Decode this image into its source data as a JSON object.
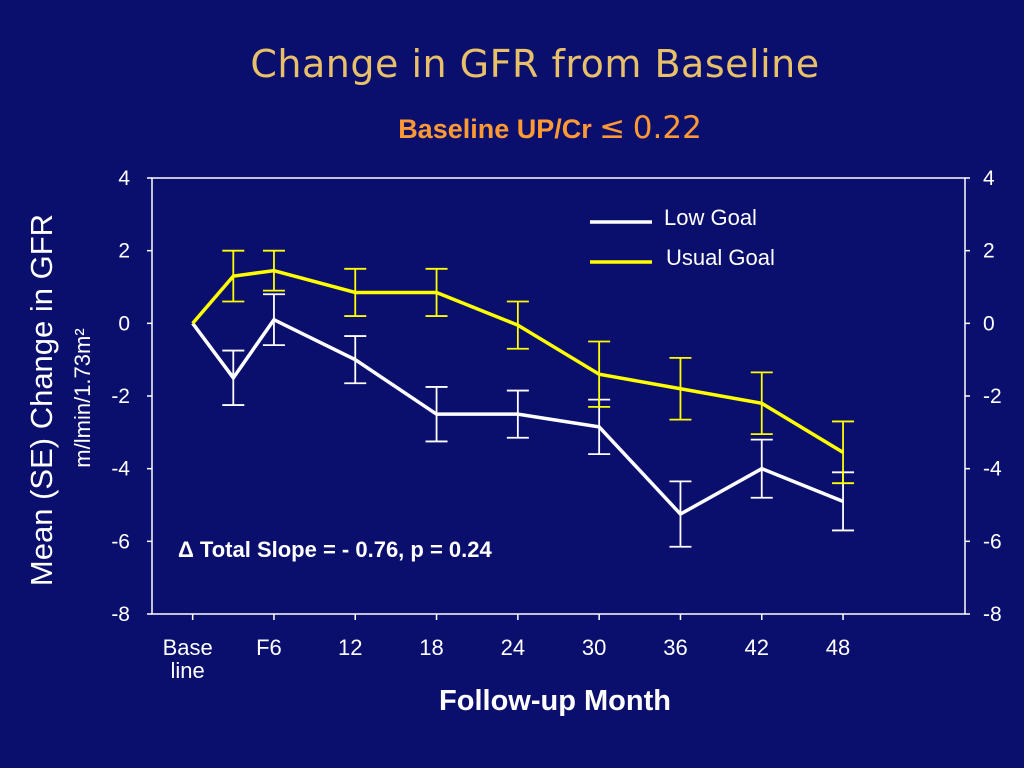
{
  "title": "Change in GFR from Baseline",
  "subtitle": {
    "prefix": "Baseline UP/Cr",
    "symbol": "≤",
    "value": "0.22"
  },
  "chart_data": {
    "type": "line",
    "x_categories": [
      "Base\nline",
      "F6",
      "12",
      "18",
      "24",
      "30",
      "36",
      "42",
      "48"
    ],
    "xlabel": "Follow-up Month",
    "ylabel": "Mean (SE) Change in GFR",
    "ylabel_sub": "m/lmin/1.73m²",
    "ylim": [
      -8,
      4
    ],
    "yticks": [
      4,
      2,
      0,
      -2,
      -4,
      -6,
      -8
    ],
    "grid": false,
    "legend_position": "top-right",
    "series": [
      {
        "name": "Low Goal",
        "color": "#ffffff",
        "x": [
          0,
          3,
          6,
          12,
          18,
          24,
          30,
          36,
          42,
          48
        ],
        "y": [
          0.0,
          -1.5,
          0.1,
          -1.0,
          -2.5,
          -2.5,
          -2.85,
          -5.25,
          -4.0,
          -4.9
        ],
        "err": [
          null,
          0.75,
          0.7,
          0.65,
          0.75,
          0.65,
          0.75,
          0.9,
          0.8,
          0.8
        ]
      },
      {
        "name": "Usual Goal",
        "color": "#ffff00",
        "x": [
          0,
          3,
          6,
          12,
          18,
          24,
          30,
          36,
          42,
          48
        ],
        "y": [
          0.0,
          1.3,
          1.45,
          0.85,
          0.85,
          -0.05,
          -1.4,
          -1.8,
          -2.2,
          -3.55
        ],
        "err": [
          null,
          0.7,
          0.55,
          0.65,
          0.65,
          0.65,
          0.9,
          0.85,
          0.85,
          0.85
        ]
      }
    ],
    "annotation": "Δ Total Slope = - 0.76, p = 0.24"
  }
}
